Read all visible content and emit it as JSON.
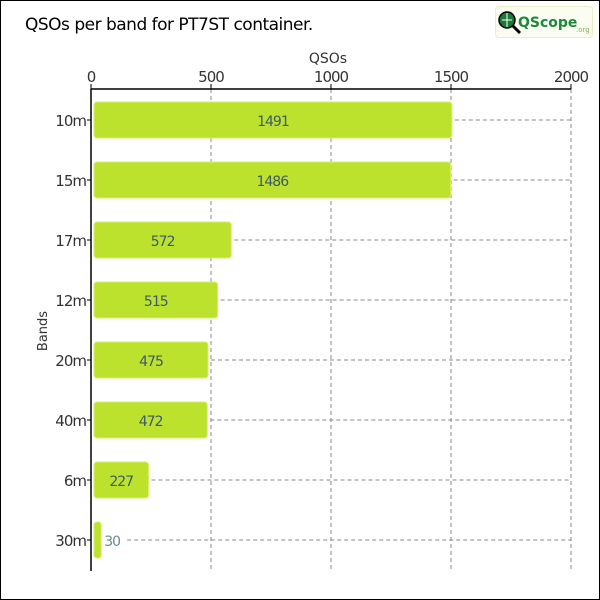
{
  "chart_data": {
    "type": "bar",
    "orientation": "horizontal",
    "title": "QSOs per band for PT7ST container.",
    "xlabel": "QSOs",
    "ylabel": "Bands",
    "xlim": [
      0,
      2000
    ],
    "xticks": [
      "0",
      "500",
      "1000",
      "1500",
      "2000"
    ],
    "categories": [
      "10m",
      "15m",
      "17m",
      "12m",
      "20m",
      "40m",
      "6m",
      "30m"
    ],
    "values": [
      1491,
      1486,
      572,
      515,
      475,
      472,
      227,
      30
    ],
    "grid": "dashed",
    "bar_color": "#bde22e",
    "label_color": "#3d5a68"
  },
  "logo": {
    "text": "QScope",
    "suffix": ".org"
  }
}
